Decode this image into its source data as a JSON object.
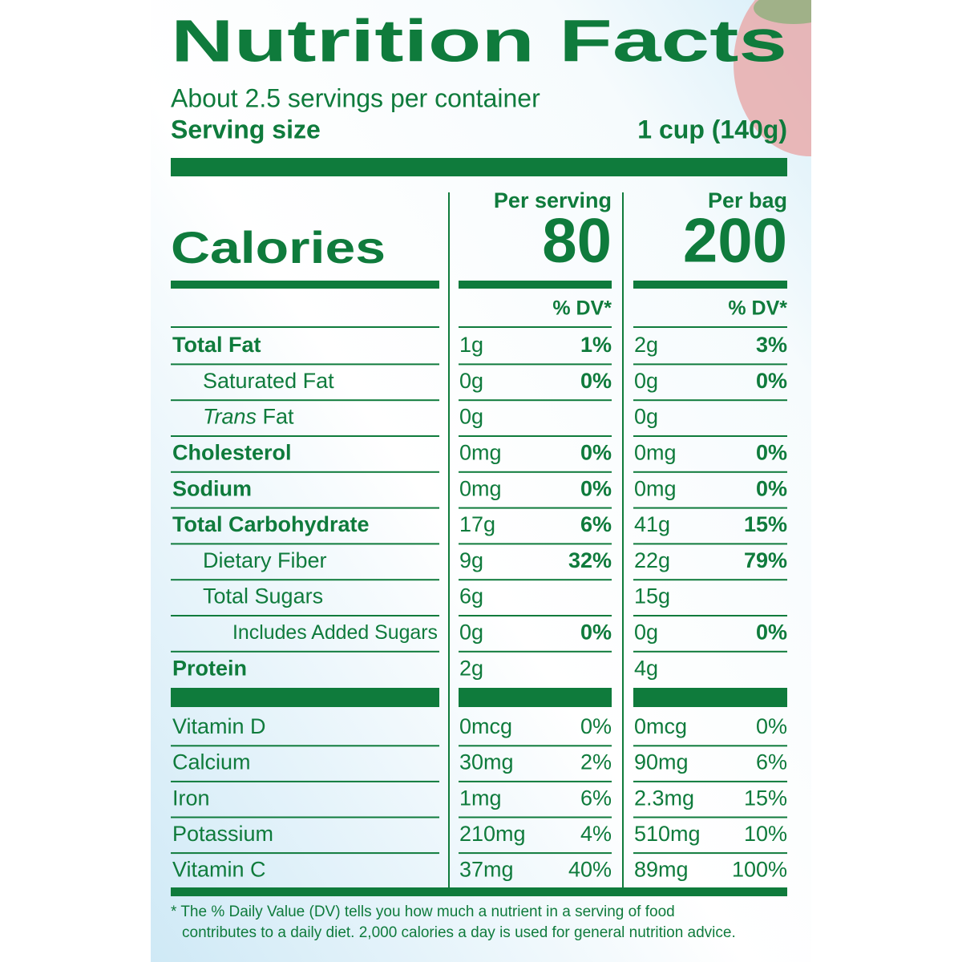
{
  "header": {
    "title": "Nutrition Facts",
    "servings": "About 2.5 servings per container",
    "serving_size_label": "Serving size",
    "serving_size": "1 cup (140g)"
  },
  "columns": [
    {
      "heading": "Per serving",
      "calories": "80",
      "dv_heading": "% DV*"
    },
    {
      "heading": "Per bag",
      "calories": "200",
      "dv_heading": "% DV*"
    }
  ],
  "calories_label": "Calories",
  "nutrients": [
    {
      "label": "Total Fat",
      "bold": true,
      "indent": 0,
      "values": [
        {
          "amount": "1g",
          "dv": "1%"
        },
        {
          "amount": "2g",
          "dv": "3%"
        }
      ]
    },
    {
      "label": "Saturated Fat",
      "bold": false,
      "indent": 1,
      "values": [
        {
          "amount": "0g",
          "dv": "0%"
        },
        {
          "amount": "0g",
          "dv": "0%"
        }
      ]
    },
    {
      "label_italic": "Trans",
      "label": "Fat",
      "bold": false,
      "indent": 1,
      "values": [
        {
          "amount": "0g"
        },
        {
          "amount": "0g"
        }
      ]
    },
    {
      "label": "Cholesterol",
      "bold": true,
      "indent": 0,
      "values": [
        {
          "amount": "0mg",
          "dv": "0%"
        },
        {
          "amount": "0mg",
          "dv": "0%"
        }
      ]
    },
    {
      "label": "Sodium",
      "bold": true,
      "indent": 0,
      "values": [
        {
          "amount": "0mg",
          "dv": "0%"
        },
        {
          "amount": "0mg",
          "dv": "0%"
        }
      ]
    },
    {
      "label": "Total Carbohydrate",
      "bold": true,
      "indent": 0,
      "values": [
        {
          "amount": "17g",
          "dv": "6%"
        },
        {
          "amount": "41g",
          "dv": "15%"
        }
      ]
    },
    {
      "label": "Dietary Fiber",
      "bold": false,
      "indent": 1,
      "values": [
        {
          "amount": "9g",
          "dv": "32%"
        },
        {
          "amount": "22g",
          "dv": "79%"
        }
      ]
    },
    {
      "label": "Total Sugars",
      "bold": false,
      "indent": 1,
      "values": [
        {
          "amount": "6g"
        },
        {
          "amount": "15g"
        }
      ]
    },
    {
      "label": "Includes Added Sugars",
      "bold": false,
      "indent": 2,
      "values": [
        {
          "amount": "0g",
          "dv": "0%"
        },
        {
          "amount": "0g",
          "dv": "0%"
        }
      ]
    },
    {
      "label": "Protein",
      "bold": true,
      "indent": 0,
      "values": [
        {
          "amount": "2g"
        },
        {
          "amount": "4g"
        }
      ]
    }
  ],
  "vitamins": [
    {
      "label": "Vitamin D",
      "values": [
        {
          "amount": "0mcg",
          "dv": "0%"
        },
        {
          "amount": "0mcg",
          "dv": "0%"
        }
      ]
    },
    {
      "label": "Calcium",
      "values": [
        {
          "amount": "30mg",
          "dv": "2%"
        },
        {
          "amount": "90mg",
          "dv": "6%"
        }
      ]
    },
    {
      "label": "Iron",
      "values": [
        {
          "amount": "1mg",
          "dv": "6%"
        },
        {
          "amount": "2.3mg",
          "dv": "15%"
        }
      ]
    },
    {
      "label": "Potassium",
      "values": [
        {
          "amount": "210mg",
          "dv": "4%"
        },
        {
          "amount": "510mg",
          "dv": "10%"
        }
      ]
    },
    {
      "label": "Vitamin C",
      "values": [
        {
          "amount": "37mg",
          "dv": "40%"
        },
        {
          "amount": "89mg",
          "dv": "100%"
        }
      ]
    }
  ],
  "footnote": [
    "* The % Daily Value (DV) tells you how much a nutrient in a serving of food",
    "contributes to a daily diet. 2,000 calories a day is used for general nutrition advice."
  ]
}
